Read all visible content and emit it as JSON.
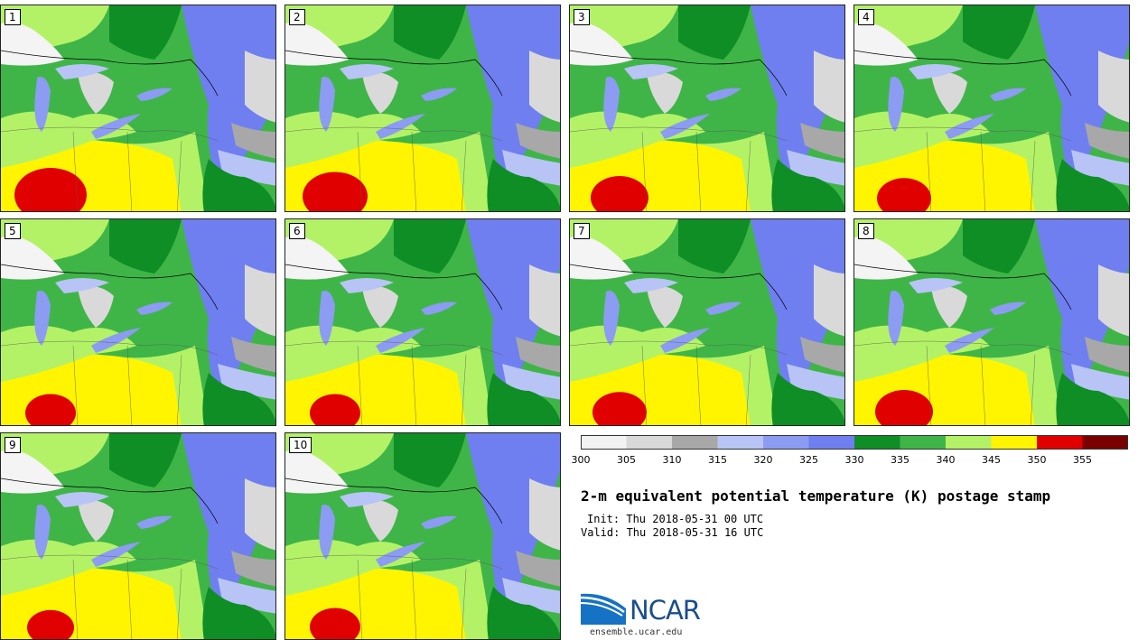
{
  "stamps": [
    {
      "label": "1",
      "red": 1.0,
      "blue": 0.55
    },
    {
      "label": "2",
      "red": 0.9,
      "blue": 0.7
    },
    {
      "label": "3",
      "red": 0.8,
      "blue": 0.75
    },
    {
      "label": "4",
      "red": 0.75,
      "blue": 0.85
    },
    {
      "label": "5",
      "red": 0.7,
      "blue": 0.75
    },
    {
      "label": "6",
      "red": 0.7,
      "blue": 0.8
    },
    {
      "label": "7",
      "red": 0.75,
      "blue": 0.7
    },
    {
      "label": "8",
      "red": 0.8,
      "blue": 0.8
    },
    {
      "label": "9",
      "red": 0.65,
      "blue": 0.75
    },
    {
      "label": "10",
      "red": 0.7,
      "blue": 0.85
    }
  ],
  "colorbar": {
    "ticks": [
      "300",
      "305",
      "310",
      "315",
      "320",
      "325",
      "330",
      "335",
      "340",
      "345",
      "350",
      "355"
    ],
    "colors": [
      "#f2f2f2",
      "#d9d9d9",
      "#a8a8a8",
      "#b8c4f5",
      "#8c9cf2",
      "#6f7ff0",
      "#0e8e25",
      "#3fb548",
      "#b3f266",
      "#fff500",
      "#e00000",
      "#7a0000"
    ]
  },
  "title": "2-m equivalent potential temperature (K) postage stamp",
  "init": "Init: Thu 2018-05-31 00 UTC",
  "valid": "Valid: Thu 2018-05-31 16 UTC",
  "logo_text": "NCAR",
  "website": "ensemble.ucar.edu"
}
